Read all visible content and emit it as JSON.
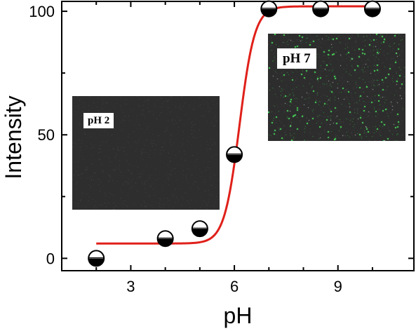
{
  "chart_data": {
    "type": "scatter",
    "title": "",
    "xlabel": "pH",
    "ylabel": "Intensity",
    "xlim": [
      1,
      11.2
    ],
    "ylim": [
      -5,
      104
    ],
    "x_ticks": [
      3,
      6,
      9
    ],
    "y_ticks": [
      0,
      50,
      100
    ],
    "grid": false,
    "series": [
      {
        "kind": "points",
        "marker": "half-filled circle (black lower half)",
        "points": [
          {
            "x": 2,
            "y": 0
          },
          {
            "x": 4,
            "y": 8
          },
          {
            "x": 5,
            "y": 12
          },
          {
            "x": 6,
            "y": 42
          },
          {
            "x": 7,
            "y": 101
          },
          {
            "x": 8.5,
            "y": 101
          },
          {
            "x": 10,
            "y": 101
          }
        ]
      },
      {
        "kind": "fit-line",
        "color": "#e0201a",
        "model": "sigmoid",
        "bottom": 6,
        "top": 102,
        "x_mid": 6.15,
        "slope": 0.22,
        "x_range": [
          2,
          10
        ]
      }
    ],
    "insets": [
      {
        "label": "pH  2",
        "image": "dark micrograph with no visible fluorescence",
        "background": "#2e2e2e"
      },
      {
        "label": "pH  7",
        "image": "dark micrograph with scattered green fluorescent dots",
        "background": "#2d2d2d",
        "dot_color": "#49e05a"
      }
    ],
    "colors": {
      "axis": "#000000",
      "fit_line": "#e0201a",
      "marker": "#000000"
    }
  }
}
